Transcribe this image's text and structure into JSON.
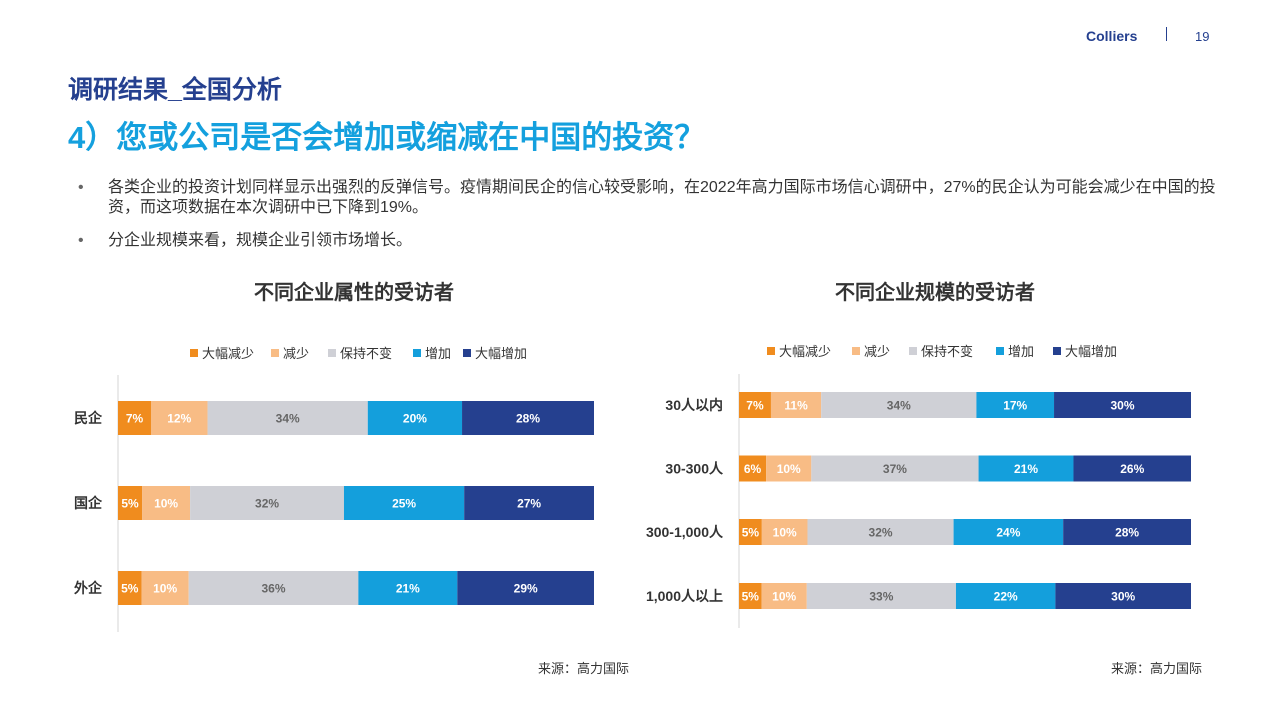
{
  "header": {
    "brand": "Colliers",
    "page_number": "19"
  },
  "section_title": "调研结果_全国分析",
  "question": "4）您或公司是否会增加或缩减在中国的投资？",
  "bullets": [
    "各类企业的投资计划同样显示出强烈的反弹信号。疫情期间民企的信心较受影响，在2022年高力国际市场信心调研中，27%的民企认为可能会减少在中国的投资，而这项数据在本次调研中已下降到19%。",
    "分企业规模来看，规模企业引领市场增长。"
  ],
  "colors": {
    "大幅减少": "#f08c1e",
    "减少": "#f8bc85",
    "保持不变": "#cfd0d6",
    "增加": "#149fdc",
    "大幅增加": "#25408f"
  },
  "chart_data": [
    {
      "type": "bar",
      "orientation": "horizontal-stacked-percent",
      "title": "不同企业属性的受访者",
      "legend": [
        "大幅减少",
        "减少",
        "保持不变",
        "增加",
        "大幅增加"
      ],
      "categories": [
        "民企",
        "国企",
        "外企"
      ],
      "series": [
        {
          "name": "大幅减少",
          "values": [
            7,
            5,
            5
          ]
        },
        {
          "name": "减少",
          "values": [
            12,
            10,
            10
          ]
        },
        {
          "name": "保持不变",
          "values": [
            34,
            32,
            36
          ]
        },
        {
          "name": "增加",
          "values": [
            20,
            25,
            21
          ]
        },
        {
          "name": "大幅增加",
          "values": [
            28,
            27,
            29
          ]
        }
      ],
      "source": "来源：高力国际"
    },
    {
      "type": "bar",
      "orientation": "horizontal-stacked-percent",
      "title": "不同企业规模的受访者",
      "legend": [
        "大幅减少",
        "减少",
        "保持不变",
        "增加",
        "大幅增加"
      ],
      "categories": [
        "30人以内",
        "30-300人",
        "300-1,000人",
        "1,000人以上"
      ],
      "series": [
        {
          "name": "大幅减少",
          "values": [
            7,
            6,
            5,
            5
          ]
        },
        {
          "name": "减少",
          "values": [
            11,
            10,
            10,
            10
          ]
        },
        {
          "name": "保持不变",
          "values": [
            34,
            37,
            32,
            33
          ]
        },
        {
          "name": "增加",
          "values": [
            17,
            21,
            24,
            22
          ]
        },
        {
          "name": "大幅增加",
          "values": [
            30,
            26,
            28,
            30
          ]
        }
      ],
      "source": "来源：高力国际"
    }
  ]
}
